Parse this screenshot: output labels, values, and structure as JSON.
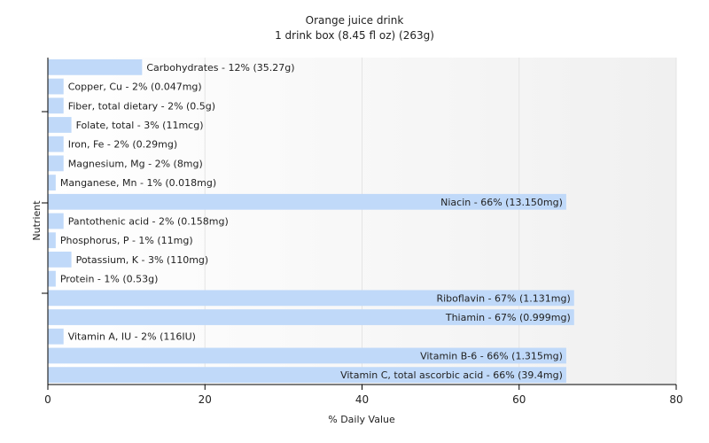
{
  "chart_data": {
    "type": "bar",
    "orientation": "horizontal",
    "title": "Orange juice drink",
    "subtitle": "1 drink box (8.45 fl oz) (263g)",
    "xlabel": "% Daily Value",
    "ylabel": "Nutrient",
    "xlim": [
      0,
      80
    ],
    "xticks": [
      0,
      20,
      40,
      60,
      80
    ],
    "grid": true,
    "bar_color": "#c0d9f9",
    "categories": [
      "Carbohydrates",
      "Copper, Cu",
      "Fiber, total dietary",
      "Folate, total",
      "Iron, Fe",
      "Magnesium, Mg",
      "Manganese, Mn",
      "Niacin",
      "Pantothenic acid",
      "Phosphorus, P",
      "Potassium, K",
      "Protein",
      "Riboflavin",
      "Thiamin",
      "Vitamin A, IU",
      "Vitamin B-6",
      "Vitamin C, total ascorbic acid"
    ],
    "values": [
      12,
      2,
      2,
      3,
      2,
      2,
      1,
      66,
      2,
      1,
      3,
      1,
      67,
      67,
      2,
      66,
      66
    ],
    "labels": [
      "Carbohydrates - 12% (35.27g)",
      "Copper, Cu - 2% (0.047mg)",
      "Fiber, total dietary - 2% (0.5g)",
      "Folate, total - 3% (11mcg)",
      "Iron, Fe - 2% (0.29mg)",
      "Magnesium, Mg - 2% (8mg)",
      "Manganese, Mn - 1% (0.018mg)",
      "Niacin - 66% (13.150mg)",
      "Pantothenic acid - 2% (0.158mg)",
      "Phosphorus, P - 1% (11mg)",
      "Potassium, K - 3% (110mg)",
      "Protein - 1% (0.53g)",
      "Riboflavin - 67% (1.131mg)",
      "Thiamin - 67% (0.999mg)",
      "Vitamin A, IU - 2% (116IU)",
      "Vitamin B-6 - 66% (1.315mg)",
      "Vitamin C, total ascorbic acid - 66% (39.4mg)"
    ]
  }
}
